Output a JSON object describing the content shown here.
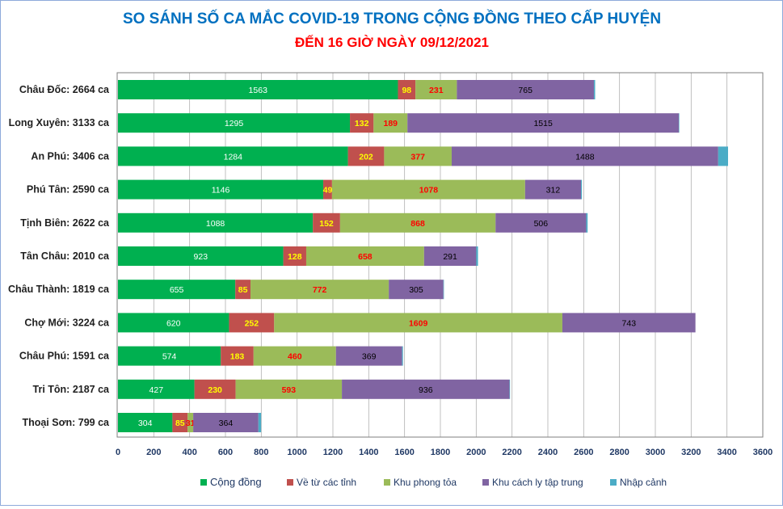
{
  "chart_data": {
    "type": "bar",
    "orientation": "horizontal",
    "stacked": true,
    "title": "SO SÁNH SỐ CA MẮC COVID-19 TRONG CỘNG ĐỒNG THEO CẤP HUYỆN",
    "subtitle": "ĐẾN 16 GIỜ NGÀY 09/12/2021",
    "xlabel": "",
    "ylabel": "",
    "xlim": [
      0,
      3600
    ],
    "xticks": [
      0,
      200,
      400,
      600,
      800,
      1000,
      1200,
      1400,
      1600,
      1800,
      2000,
      2200,
      2400,
      2600,
      2800,
      3000,
      3200,
      3400,
      3600
    ],
    "grid": true,
    "legend_position": "bottom",
    "categories": [
      "Châu Đốc: 2664 ca",
      "Long Xuyên: 3133 ca",
      "An Phú: 3406 ca",
      "Phú Tân: 2590 ca",
      "Tịnh Biên: 2622 ca",
      "Tân Châu: 2010 ca",
      "Châu Thành: 1819 ca",
      "Chợ Mới: 3224 ca",
      "Châu Phú: 1591 ca",
      "Tri Tôn:  2187 ca",
      "Thoại  Sơn: 799 ca"
    ],
    "series": [
      {
        "name": "Cộng đồng",
        "color": "#00b050",
        "label_color": "#ffffff",
        "values": [
          1563,
          1295,
          1284,
          1146,
          1088,
          923,
          655,
          620,
          574,
          427,
          304
        ]
      },
      {
        "name": "Về từ các tỉnh",
        "color": "#c0504d",
        "label_color": "#ffff00",
        "values": [
          98,
          132,
          202,
          49,
          152,
          128,
          85,
          252,
          183,
          230,
          85
        ]
      },
      {
        "name": "Khu phong tỏa",
        "color": "#9bbb59",
        "label_color": "#ff0000",
        "values": [
          231,
          189,
          377,
          1078,
          868,
          658,
          772,
          1609,
          460,
          593,
          31
        ]
      },
      {
        "name": "Khu cách ly tập trung",
        "color": "#8064a2",
        "label_color": "#000000",
        "values": [
          765,
          1515,
          1488,
          312,
          506,
          291,
          305,
          743,
          369,
          936,
          364
        ]
      },
      {
        "name": "Nhập cảnh",
        "color": "#4bacc6",
        "label_color": "#000000",
        "values": [
          7,
          2,
          55,
          5,
          8,
          10,
          2,
          0,
          5,
          1,
          15
        ]
      }
    ]
  }
}
